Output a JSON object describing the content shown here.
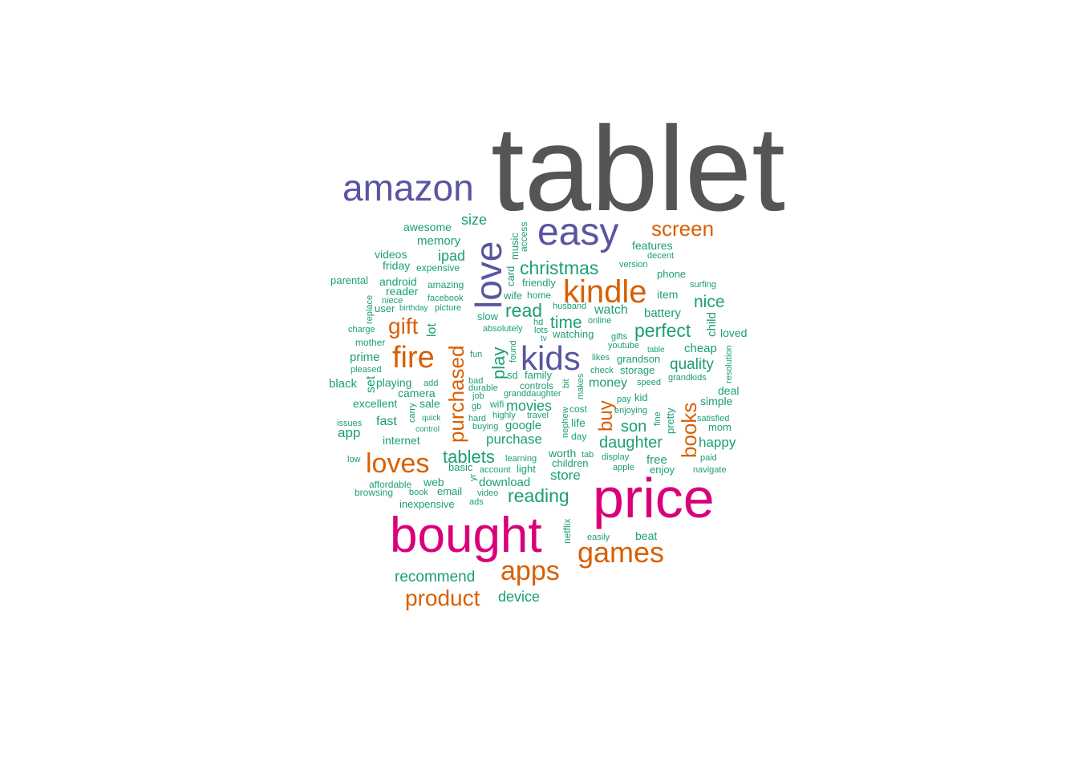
{
  "palette": {
    "tier1": "#555555",
    "tier2": "#d9007a",
    "tier3": "#5a55a0",
    "tier4": "#d95f02",
    "tier5": "#1b9e77"
  },
  "chart_data": {
    "type": "wordcloud",
    "words": [
      {
        "text": "tablet",
        "tier": 1
      },
      {
        "text": "price",
        "tier": 2
      },
      {
        "text": "bought",
        "tier": 2
      },
      {
        "text": "amazon",
        "tier": 3
      },
      {
        "text": "easy",
        "tier": 3
      },
      {
        "text": "love",
        "tier": 3
      },
      {
        "text": "kids",
        "tier": 3
      },
      {
        "text": "kindle",
        "tier": 4
      },
      {
        "text": "fire",
        "tier": 4
      },
      {
        "text": "loves",
        "tier": 4
      },
      {
        "text": "games",
        "tier": 4
      },
      {
        "text": "apps",
        "tier": 4
      },
      {
        "text": "product",
        "tier": 4
      },
      {
        "text": "gift",
        "tier": 4
      },
      {
        "text": "screen",
        "tier": 4
      },
      {
        "text": "purchased",
        "tier": 4
      },
      {
        "text": "books",
        "tier": 4
      },
      {
        "text": "buy",
        "tier": 4
      },
      {
        "text": "christmas",
        "tier": 5
      },
      {
        "text": "read",
        "tier": 5
      },
      {
        "text": "time",
        "tier": 5
      },
      {
        "text": "perfect",
        "tier": 5
      },
      {
        "text": "nice",
        "tier": 5
      },
      {
        "text": "quality",
        "tier": 5
      },
      {
        "text": "reading",
        "tier": 5
      },
      {
        "text": "tablets",
        "tier": 5
      },
      {
        "text": "daughter",
        "tier": 5
      },
      {
        "text": "son",
        "tier": 5
      },
      {
        "text": "recommend",
        "tier": 5
      },
      {
        "text": "device",
        "tier": 5
      },
      {
        "text": "size",
        "tier": 5
      },
      {
        "text": "ipad",
        "tier": 5
      },
      {
        "text": "play",
        "tier": 5
      },
      {
        "text": "movies",
        "tier": 5
      },
      {
        "text": "purchase",
        "tier": 5
      },
      {
        "text": "store",
        "tier": 5
      },
      {
        "text": "happy",
        "tier": 5
      },
      {
        "text": "watch",
        "tier": 5
      },
      {
        "text": "money",
        "tier": 5
      },
      {
        "text": "cheap",
        "tier": 5
      },
      {
        "text": "battery",
        "tier": 5
      },
      {
        "text": "awesome",
        "tier": 5
      },
      {
        "text": "memory",
        "tier": 5
      },
      {
        "text": "videos",
        "tier": 5
      },
      {
        "text": "friday",
        "tier": 5
      },
      {
        "text": "android",
        "tier": 5
      },
      {
        "text": "reader",
        "tier": 5
      },
      {
        "text": "lot",
        "tier": 5
      },
      {
        "text": "prime",
        "tier": 5
      },
      {
        "text": "set",
        "tier": 5
      },
      {
        "text": "black",
        "tier": 5
      },
      {
        "text": "playing",
        "tier": 5
      },
      {
        "text": "camera",
        "tier": 5
      },
      {
        "text": "excellent",
        "tier": 5
      },
      {
        "text": "sale",
        "tier": 5
      },
      {
        "text": "fast",
        "tier": 5
      },
      {
        "text": "app",
        "tier": 5
      },
      {
        "text": "internet",
        "tier": 5
      },
      {
        "text": "google",
        "tier": 5
      },
      {
        "text": "download",
        "tier": 5
      },
      {
        "text": "web",
        "tier": 5
      },
      {
        "text": "email",
        "tier": 5
      },
      {
        "text": "free",
        "tier": 5
      },
      {
        "text": "worth",
        "tier": 5
      },
      {
        "text": "children",
        "tier": 5
      },
      {
        "text": "family",
        "tier": 5
      },
      {
        "text": "features",
        "tier": 5
      },
      {
        "text": "phone",
        "tier": 5
      },
      {
        "text": "item",
        "tier": 5
      },
      {
        "text": "simple",
        "tier": 5
      },
      {
        "text": "deal",
        "tier": 5
      },
      {
        "text": "loved",
        "tier": 5
      },
      {
        "text": "child",
        "tier": 5
      },
      {
        "text": "beat",
        "tier": 5
      },
      {
        "text": "enjoy",
        "tier": 5
      },
      {
        "text": "mom",
        "tier": 5
      },
      {
        "text": "storage",
        "tier": 5
      },
      {
        "text": "grandson",
        "tier": 5
      },
      {
        "text": "pretty",
        "tier": 5
      },
      {
        "text": "kid",
        "tier": 5
      },
      {
        "text": "life",
        "tier": 5
      },
      {
        "text": "cost",
        "tier": 5
      },
      {
        "text": "day",
        "tier": 5
      },
      {
        "text": "inexpensive",
        "tier": 5
      },
      {
        "text": "light",
        "tier": 5
      },
      {
        "text": "basic",
        "tier": 5
      },
      {
        "text": "music",
        "tier": 5
      },
      {
        "text": "access",
        "tier": 5
      },
      {
        "text": "card",
        "tier": 5
      },
      {
        "text": "parental",
        "tier": 5
      },
      {
        "text": "expensive",
        "tier": 5
      },
      {
        "text": "amazing",
        "tier": 5
      },
      {
        "text": "facebook",
        "tier": 5
      },
      {
        "text": "picture",
        "tier": 5
      },
      {
        "text": "birthday",
        "tier": 5
      },
      {
        "text": "niece",
        "tier": 5
      },
      {
        "text": "user",
        "tier": 5
      },
      {
        "text": "replace",
        "tier": 5
      },
      {
        "text": "charge",
        "tier": 5
      },
      {
        "text": "mother",
        "tier": 5
      },
      {
        "text": "pleased",
        "tier": 5
      },
      {
        "text": "add",
        "tier": 5
      },
      {
        "text": "issues",
        "tier": 5
      },
      {
        "text": "carry",
        "tier": 5
      },
      {
        "text": "quick",
        "tier": 5
      },
      {
        "text": "control",
        "tier": 5
      },
      {
        "text": "low",
        "tier": 5
      },
      {
        "text": "affordable",
        "tier": 5
      },
      {
        "text": "browsing",
        "tier": 5
      },
      {
        "text": "book",
        "tier": 5
      },
      {
        "text": "ads",
        "tier": 5
      },
      {
        "text": "video",
        "tier": 5
      },
      {
        "text": "account",
        "tier": 5
      },
      {
        "text": "learning",
        "tier": 5
      },
      {
        "text": "yr",
        "tier": 5
      },
      {
        "text": "slow",
        "tier": 5
      },
      {
        "text": "absolutely",
        "tier": 5
      },
      {
        "text": "lots",
        "tier": 5
      },
      {
        "text": "hd",
        "tier": 5
      },
      {
        "text": "tv",
        "tier": 5
      },
      {
        "text": "found",
        "tier": 5
      },
      {
        "text": "fun",
        "tier": 5
      },
      {
        "text": "sd",
        "tier": 5
      },
      {
        "text": "bad",
        "tier": 5
      },
      {
        "text": "durable",
        "tier": 5
      },
      {
        "text": "job",
        "tier": 5
      },
      {
        "text": "gb",
        "tier": 5
      },
      {
        "text": "wifi",
        "tier": 5
      },
      {
        "text": "hard",
        "tier": 5
      },
      {
        "text": "buying",
        "tier": 5
      },
      {
        "text": "highly",
        "tier": 5
      },
      {
        "text": "travel",
        "tier": 5
      },
      {
        "text": "controls",
        "tier": 5
      },
      {
        "text": "granddaughter",
        "tier": 5
      },
      {
        "text": "friendly",
        "tier": 5
      },
      {
        "text": "wife",
        "tier": 5
      },
      {
        "text": "home",
        "tier": 5
      },
      {
        "text": "husband",
        "tier": 5
      },
      {
        "text": "online",
        "tier": 5
      },
      {
        "text": "watching",
        "tier": 5
      },
      {
        "text": "gifts",
        "tier": 5
      },
      {
        "text": "youtube",
        "tier": 5
      },
      {
        "text": "likes",
        "tier": 5
      },
      {
        "text": "check",
        "tier": 5
      },
      {
        "text": "makes",
        "tier": 5
      },
      {
        "text": "bit",
        "tier": 5
      },
      {
        "text": "nephew",
        "tier": 5
      },
      {
        "text": "pay",
        "tier": 5
      },
      {
        "text": "enjoying",
        "tier": 5
      },
      {
        "text": "speed",
        "tier": 5
      },
      {
        "text": "fine",
        "tier": 5
      },
      {
        "text": "table",
        "tier": 5
      },
      {
        "text": "grandkids",
        "tier": 5
      },
      {
        "text": "resolution",
        "tier": 5
      },
      {
        "text": "satisfied",
        "tier": 5
      },
      {
        "text": "version",
        "tier": 5
      },
      {
        "text": "decent",
        "tier": 5
      },
      {
        "text": "surfing",
        "tier": 5
      },
      {
        "text": "tab",
        "tier": 5
      },
      {
        "text": "display",
        "tier": 5
      },
      {
        "text": "apple",
        "tier": 5
      },
      {
        "text": "paid",
        "tier": 5
      },
      {
        "text": "navigate",
        "tier": 5
      },
      {
        "text": "netflix",
        "tier": 5
      },
      {
        "text": "easily",
        "tier": 5
      }
    ]
  }
}
